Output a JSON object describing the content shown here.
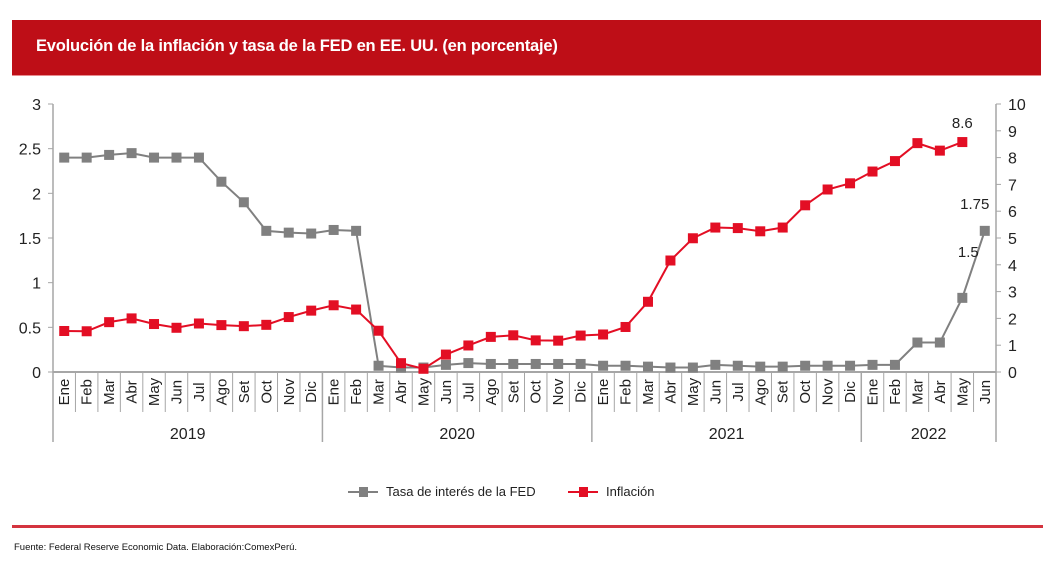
{
  "header": {
    "title": "Evolución de la inflación y tasa de la FED en EE. UU. (en porcentaje)"
  },
  "chart_data": {
    "type": "line",
    "title": "Evolución de la inflación y tasa de la FED en EE. UU. (en porcentaje)",
    "categories": [
      "Ene",
      "Feb",
      "Mar",
      "Abr",
      "May",
      "Jun",
      "Jul",
      "Ago",
      "Set",
      "Oct",
      "Nov",
      "Dic",
      "Ene",
      "Feb",
      "Mar",
      "Abr",
      "May",
      "Jun",
      "Jul",
      "Ago",
      "Set",
      "Oct",
      "Nov",
      "Dic",
      "Ene",
      "Feb",
      "Mar",
      "Abr",
      "May",
      "Jun",
      "Jul",
      "Ago",
      "Set",
      "Oct",
      "Nov",
      "Dic",
      "Ene",
      "Feb",
      "Mar",
      "Abr",
      "May",
      "Jun"
    ],
    "year_groups": [
      {
        "label": "2019",
        "count": 12
      },
      {
        "label": "2020",
        "count": 12
      },
      {
        "label": "2021",
        "count": 12
      },
      {
        "label": "2022",
        "count": 6
      }
    ],
    "y_left": {
      "min": 0,
      "max": 3,
      "ticks": [
        "0",
        "0.5",
        "1",
        "1.5",
        "2",
        "2.5",
        "3"
      ],
      "tick_values": [
        0,
        0.5,
        1,
        1.5,
        2,
        2.5,
        3
      ]
    },
    "y_right": {
      "min": 0,
      "max": 10,
      "ticks": [
        "0",
        "1",
        "2",
        "3",
        "4",
        "5",
        "6",
        "7",
        "8",
        "9",
        "10"
      ],
      "tick_values": [
        0,
        1,
        2,
        3,
        4,
        5,
        6,
        7,
        8,
        9,
        10
      ]
    },
    "series": [
      {
        "name": "Tasa de interés de la FED",
        "axis": "left",
        "color": "#808080",
        "values": [
          2.4,
          2.4,
          2.43,
          2.45,
          2.4,
          2.4,
          2.4,
          2.13,
          1.9,
          1.58,
          1.56,
          1.55,
          1.59,
          1.58,
          0.07,
          0.05,
          0.05,
          0.08,
          0.1,
          0.09,
          0.09,
          0.09,
          0.09,
          0.09,
          0.07,
          0.07,
          0.06,
          0.05,
          0.05,
          0.08,
          0.07,
          0.06,
          0.06,
          0.07,
          0.07,
          0.07,
          0.08,
          0.08,
          0.33,
          0.33,
          0.83,
          1.58
        ],
        "annotations": [
          {
            "index": 41,
            "text": "1.75",
            "position": "above"
          },
          {
            "index": 41,
            "text": "1.5",
            "position": "below-left"
          }
        ]
      },
      {
        "name": "Inflación",
        "axis": "right",
        "color": "#E30E24",
        "values": [
          1.53,
          1.52,
          1.86,
          2.0,
          1.79,
          1.65,
          1.81,
          1.75,
          1.71,
          1.76,
          2.05,
          2.29,
          2.49,
          2.33,
          1.54,
          0.33,
          0.12,
          0.65,
          0.99,
          1.31,
          1.37,
          1.18,
          1.17,
          1.36,
          1.4,
          1.68,
          2.62,
          4.16,
          4.99,
          5.39,
          5.37,
          5.25,
          5.39,
          6.22,
          6.81,
          7.04,
          7.48,
          7.87,
          8.54,
          8.26,
          8.58,
          null
        ],
        "annotations": [
          {
            "index": 40,
            "text": "8.6",
            "position": "above"
          }
        ]
      }
    ],
    "xlabel": "",
    "ylabel": "",
    "grid": false,
    "legend": "bottom-center"
  },
  "legend": {
    "items": [
      {
        "label": "Tasa de interés de la FED",
        "color": "#808080"
      },
      {
        "label": "Inflación",
        "color": "#E30E24"
      }
    ]
  },
  "footer": {
    "source": "Fuente: Federal Reserve Economic Data. Elaboración:ComexPerú."
  }
}
